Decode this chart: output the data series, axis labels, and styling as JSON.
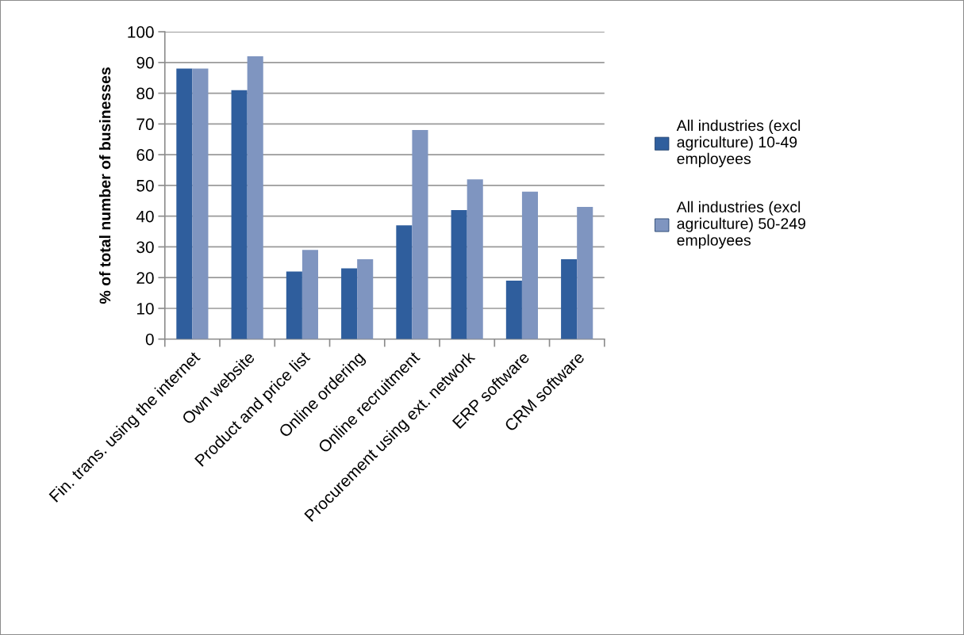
{
  "chart_data": {
    "type": "bar",
    "ylabel": "% of total number of businesses",
    "categories": [
      "Fin. trans. using the internet",
      "Own website",
      "Product and price list",
      "Online ordering",
      "Online recruitment",
      "Procurement using ext. network",
      "ERP software",
      "CRM software"
    ],
    "series": [
      {
        "name": "All industries (excl agriculture) 10-49 employees",
        "color": "#2f5e9d",
        "values": [
          88,
          81,
          22,
          23,
          37,
          42,
          19,
          26
        ]
      },
      {
        "name": "All industries (excl agriculture) 50-249 employees",
        "color": "#7f95c0",
        "values": [
          88,
          92,
          29,
          26,
          68,
          52,
          48,
          43
        ]
      }
    ],
    "ylim": [
      0,
      100
    ],
    "yticks": [
      0,
      10,
      20,
      30,
      40,
      50,
      60,
      70,
      80,
      90,
      100
    ],
    "grid": "y",
    "legend": "right"
  }
}
